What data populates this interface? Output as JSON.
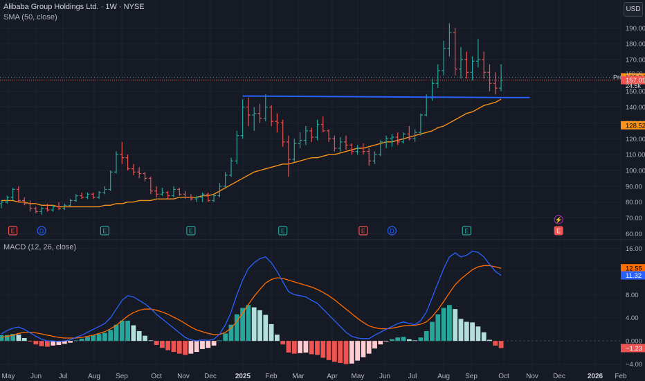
{
  "header": {
    "title": "Alibaba Group Holdings Ltd. · 1W · NYSE",
    "indicator": "SMA (50, close)",
    "currency_button": "USD"
  },
  "macd_panel": {
    "label": "MACD (12, 26, close)"
  },
  "colors": {
    "background": "#161a25",
    "up": "#26a69a",
    "down": "#ef5350",
    "sma": "#f7931a",
    "trendline": "#2962ff",
    "macd_line": "#2962ff",
    "signal_line": "#ff6d00",
    "hist_up_strong": "#26a69a",
    "hist_up_weak": "#b2dfdb",
    "hist_down_strong": "#ef5350",
    "hist_down_weak": "#ffcdd2"
  },
  "chart_data": [
    {
      "type": "candlestick",
      "title": "Alibaba Group Holdings Ltd. · 1W · NYSE",
      "y_ticks": [
        60,
        70,
        80,
        90,
        100,
        110,
        120,
        130,
        140,
        150,
        160,
        170,
        180,
        190
      ],
      "ylim": [
        58,
        198
      ],
      "x_ticks": [
        "May",
        "Jun",
        "Jul",
        "Aug",
        "Sep",
        "Oct",
        "Nov",
        "Dec",
        "2025",
        "Feb",
        "Mar",
        "Apr",
        "May",
        "Jun",
        "Jul",
        "Aug",
        "Sep",
        "Oct",
        "Nov",
        "Dec",
        "2026",
        "Feb"
      ],
      "bars": [
        {
          "o": 79,
          "h": 81,
          "l": 76,
          "c": 80
        },
        {
          "o": 80,
          "h": 84,
          "l": 79,
          "c": 83
        },
        {
          "o": 83,
          "h": 89,
          "l": 81,
          "c": 88
        },
        {
          "o": 88,
          "h": 90,
          "l": 80,
          "c": 81
        },
        {
          "o": 81,
          "h": 83,
          "l": 78,
          "c": 79
        },
        {
          "o": 79,
          "h": 81,
          "l": 74,
          "c": 76
        },
        {
          "o": 76,
          "h": 77,
          "l": 73,
          "c": 74
        },
        {
          "o": 74,
          "h": 77,
          "l": 72,
          "c": 76
        },
        {
          "o": 76,
          "h": 79,
          "l": 74,
          "c": 75
        },
        {
          "o": 75,
          "h": 78,
          "l": 74,
          "c": 77
        },
        {
          "o": 77,
          "h": 80,
          "l": 75,
          "c": 76
        },
        {
          "o": 76,
          "h": 79,
          "l": 75,
          "c": 78
        },
        {
          "o": 78,
          "h": 82,
          "l": 77,
          "c": 81
        },
        {
          "o": 81,
          "h": 85,
          "l": 80,
          "c": 84
        },
        {
          "o": 84,
          "h": 86,
          "l": 82,
          "c": 83
        },
        {
          "o": 83,
          "h": 86,
          "l": 82,
          "c": 85
        },
        {
          "o": 85,
          "h": 86,
          "l": 82,
          "c": 83
        },
        {
          "o": 83,
          "h": 87,
          "l": 82,
          "c": 86
        },
        {
          "o": 86,
          "h": 90,
          "l": 85,
          "c": 88
        },
        {
          "o": 88,
          "h": 100,
          "l": 87,
          "c": 99
        },
        {
          "o": 99,
          "h": 112,
          "l": 98,
          "c": 110
        },
        {
          "o": 110,
          "h": 118,
          "l": 104,
          "c": 108
        },
        {
          "o": 108,
          "h": 110,
          "l": 100,
          "c": 101
        },
        {
          "o": 101,
          "h": 104,
          "l": 97,
          "c": 99
        },
        {
          "o": 99,
          "h": 102,
          "l": 95,
          "c": 98
        },
        {
          "o": 98,
          "h": 99,
          "l": 93,
          "c": 95
        },
        {
          "o": 95,
          "h": 96,
          "l": 85,
          "c": 87
        },
        {
          "o": 87,
          "h": 90,
          "l": 83,
          "c": 85
        },
        {
          "o": 85,
          "h": 89,
          "l": 84,
          "c": 86
        },
        {
          "o": 86,
          "h": 87,
          "l": 82,
          "c": 84
        },
        {
          "o": 84,
          "h": 90,
          "l": 83,
          "c": 88
        },
        {
          "o": 88,
          "h": 89,
          "l": 84,
          "c": 85
        },
        {
          "o": 85,
          "h": 87,
          "l": 82,
          "c": 83
        },
        {
          "o": 83,
          "h": 85,
          "l": 81,
          "c": 82
        },
        {
          "o": 82,
          "h": 84,
          "l": 80,
          "c": 83
        },
        {
          "o": 83,
          "h": 86,
          "l": 80,
          "c": 85
        },
        {
          "o": 85,
          "h": 86,
          "l": 80,
          "c": 81
        },
        {
          "o": 81,
          "h": 85,
          "l": 80,
          "c": 84
        },
        {
          "o": 84,
          "h": 92,
          "l": 83,
          "c": 90
        },
        {
          "o": 90,
          "h": 99,
          "l": 89,
          "c": 97
        },
        {
          "o": 97,
          "h": 108,
          "l": 96,
          "c": 106
        },
        {
          "o": 106,
          "h": 125,
          "l": 104,
          "c": 122
        },
        {
          "o": 122,
          "h": 145,
          "l": 120,
          "c": 140
        },
        {
          "o": 140,
          "h": 146,
          "l": 128,
          "c": 135
        },
        {
          "o": 135,
          "h": 140,
          "l": 125,
          "c": 136
        },
        {
          "o": 136,
          "h": 142,
          "l": 130,
          "c": 133
        },
        {
          "o": 133,
          "h": 148,
          "l": 131,
          "c": 140
        },
        {
          "o": 140,
          "h": 141,
          "l": 128,
          "c": 131
        },
        {
          "o": 131,
          "h": 136,
          "l": 124,
          "c": 130
        },
        {
          "o": 130,
          "h": 132,
          "l": 115,
          "c": 118
        },
        {
          "o": 118,
          "h": 122,
          "l": 96,
          "c": 107
        },
        {
          "o": 107,
          "h": 120,
          "l": 105,
          "c": 117
        },
        {
          "o": 117,
          "h": 124,
          "l": 114,
          "c": 119
        },
        {
          "o": 119,
          "h": 128,
          "l": 116,
          "c": 125
        },
        {
          "o": 125,
          "h": 127,
          "l": 118,
          "c": 121
        },
        {
          "o": 121,
          "h": 132,
          "l": 119,
          "c": 129
        },
        {
          "o": 129,
          "h": 134,
          "l": 124,
          "c": 125
        },
        {
          "o": 125,
          "h": 126,
          "l": 118,
          "c": 120
        },
        {
          "o": 120,
          "h": 122,
          "l": 112,
          "c": 114
        },
        {
          "o": 114,
          "h": 121,
          "l": 112,
          "c": 118
        },
        {
          "o": 118,
          "h": 122,
          "l": 113,
          "c": 116
        },
        {
          "o": 116,
          "h": 117,
          "l": 110,
          "c": 112
        },
        {
          "o": 112,
          "h": 116,
          "l": 110,
          "c": 114
        },
        {
          "o": 114,
          "h": 117,
          "l": 110,
          "c": 112
        },
        {
          "o": 112,
          "h": 114,
          "l": 103,
          "c": 106
        },
        {
          "o": 106,
          "h": 112,
          "l": 104,
          "c": 110
        },
        {
          "o": 110,
          "h": 119,
          "l": 109,
          "c": 118
        },
        {
          "o": 118,
          "h": 122,
          "l": 114,
          "c": 120
        },
        {
          "o": 120,
          "h": 123,
          "l": 115,
          "c": 121
        },
        {
          "o": 121,
          "h": 124,
          "l": 116,
          "c": 118
        },
        {
          "o": 118,
          "h": 124,
          "l": 117,
          "c": 123
        },
        {
          "o": 123,
          "h": 128,
          "l": 119,
          "c": 120
        },
        {
          "o": 120,
          "h": 126,
          "l": 118,
          "c": 124
        },
        {
          "o": 124,
          "h": 136,
          "l": 122,
          "c": 135
        },
        {
          "o": 135,
          "h": 148,
          "l": 134,
          "c": 146
        },
        {
          "o": 146,
          "h": 158,
          "l": 144,
          "c": 155
        },
        {
          "o": 155,
          "h": 167,
          "l": 152,
          "c": 163
        },
        {
          "o": 163,
          "h": 182,
          "l": 160,
          "c": 177
        },
        {
          "o": 177,
          "h": 193,
          "l": 172,
          "c": 187
        },
        {
          "o": 187,
          "h": 190,
          "l": 160,
          "c": 164
        },
        {
          "o": 164,
          "h": 178,
          "l": 158,
          "c": 170
        },
        {
          "o": 170,
          "h": 175,
          "l": 158,
          "c": 162
        },
        {
          "o": 162,
          "h": 172,
          "l": 157,
          "c": 169
        },
        {
          "o": 169,
          "h": 183,
          "l": 165,
          "c": 170
        },
        {
          "o": 170,
          "h": 175,
          "l": 158,
          "c": 162
        },
        {
          "o": 162,
          "h": 167,
          "l": 150,
          "c": 155
        },
        {
          "o": 155,
          "h": 162,
          "l": 148,
          "c": 152
        },
        {
          "o": 152,
          "h": 167,
          "l": 150,
          "c": 157
        }
      ],
      "sma50": [
        81,
        81,
        81,
        80,
        80,
        79,
        79,
        78,
        78,
        78,
        77,
        77,
        77,
        77,
        77,
        77,
        77,
        77,
        78,
        78,
        79,
        79,
        80,
        80,
        81,
        81,
        81,
        82,
        82,
        82,
        82,
        83,
        83,
        83,
        83,
        84,
        84,
        85,
        87,
        89,
        91,
        93,
        95,
        97,
        99,
        100,
        101,
        102,
        103,
        104,
        104,
        105,
        106,
        107,
        108,
        108,
        109,
        110,
        110,
        111,
        112,
        113,
        114,
        114,
        115,
        116,
        117,
        118,
        118,
        119,
        120,
        121,
        122,
        123,
        124,
        125,
        127,
        128,
        130,
        132,
        134,
        136,
        137,
        139,
        141,
        142,
        143,
        145
      ],
      "trendline": [
        {
          "bar": 42,
          "price": 147
        },
        {
          "bar": 87,
          "price": 146
        },
        {
          "bar": 92,
          "price": 146
        }
      ],
      "earnings_markers": [
        {
          "bar": 2,
          "label": "E",
          "kind": "earnings-miss"
        },
        {
          "bar": 7,
          "label": "D",
          "kind": "dividend"
        },
        {
          "bar": 18,
          "label": "E",
          "kind": "earnings-beat"
        },
        {
          "bar": 33,
          "label": "E",
          "kind": "earnings-beat"
        },
        {
          "bar": 49,
          "label": "E",
          "kind": "earnings-beat"
        },
        {
          "bar": 63,
          "label": "E",
          "kind": "earnings-miss"
        },
        {
          "bar": 68,
          "label": "D",
          "kind": "dividend"
        },
        {
          "bar": 81,
          "label": "E",
          "kind": "earnings-beat"
        },
        {
          "bar": 97,
          "label": "E",
          "kind": "earnings-upcoming"
        }
      ],
      "price_labels": [
        {
          "text": "158.74",
          "bg": "#f7931a",
          "fg": "#000000",
          "value": 158.74
        },
        {
          "text": "157.01",
          "bg": "#ef5350",
          "fg": "#ffffff",
          "value": 157.01
        },
        {
          "text": "128.52",
          "bg": "#f7931a",
          "fg": "#000000",
          "value": 128.52
        }
      ],
      "partial_labels": [
        "Pre",
        "160.00",
        "24.5k"
      ]
    },
    {
      "type": "macd",
      "title": "MACD (12, 26, close)",
      "y_ticks": [
        -4,
        0,
        4,
        8,
        12,
        16
      ],
      "y_tick_labels": [
        "−4.00",
        "0.000",
        "4.00",
        "8.00",
        "12.00",
        "16.00"
      ],
      "ylim": [
        -5,
        17
      ],
      "macd": [
        1.2,
        1.8,
        2.2,
        2.4,
        2.0,
        1.4,
        0.8,
        0.3,
        0.0,
        0.0,
        -0.1,
        0.0,
        0.2,
        0.6,
        1.0,
        1.5,
        2.0,
        2.5,
        3.0,
        4.0,
        5.5,
        7.0,
        7.8,
        7.6,
        7.0,
        6.4,
        5.6,
        4.6,
        3.8,
        3.0,
        2.2,
        1.4,
        0.6,
        0.2,
        0.0,
        0.2,
        0.1,
        0.3,
        1.2,
        2.8,
        5.0,
        8.0,
        10.5,
        12.5,
        13.5,
        14.2,
        14.5,
        13.5,
        12.0,
        10.2,
        8.5,
        8.0,
        7.8,
        7.6,
        7.0,
        6.5,
        5.5,
        4.5,
        3.5,
        2.5,
        1.5,
        0.8,
        0.5,
        0.4,
        0.4,
        1.0,
        1.5,
        2.0,
        2.5,
        3.0,
        3.3,
        3.0,
        2.8,
        3.5,
        5.0,
        7.5,
        10.0,
        12.5,
        14.5,
        15.2,
        14.5,
        14.8,
        15.5,
        15.3,
        14.5,
        13.2,
        12.0,
        11.3
      ],
      "signal": [
        0.6,
        0.8,
        1.0,
        1.3,
        1.5,
        1.5,
        1.4,
        1.2,
        1.0,
        0.8,
        0.6,
        0.5,
        0.5,
        0.5,
        0.6,
        0.8,
        1.0,
        1.3,
        1.6,
        2.1,
        2.7,
        3.5,
        4.3,
        4.9,
        5.3,
        5.5,
        5.5,
        5.3,
        5.0,
        4.6,
        4.1,
        3.6,
        3.0,
        2.4,
        1.9,
        1.6,
        1.3,
        1.1,
        1.1,
        1.5,
        2.2,
        3.4,
        4.8,
        6.3,
        7.7,
        8.9,
        10.0,
        10.6,
        10.9,
        10.8,
        10.5,
        10.2,
        9.9,
        9.6,
        9.3,
        8.9,
        8.4,
        7.8,
        7.1,
        6.3,
        5.5,
        4.7,
        3.9,
        3.2,
        2.6,
        2.3,
        2.1,
        2.1,
        2.2,
        2.4,
        2.6,
        2.7,
        2.7,
        2.9,
        3.3,
        4.2,
        5.4,
        6.8,
        8.3,
        9.7,
        10.7,
        11.5,
        12.3,
        12.8,
        13.0,
        13.0,
        12.8,
        12.55
      ],
      "histogram": [
        1.0,
        1.0,
        1.2,
        1.1,
        0.5,
        -0.1,
        -0.6,
        -0.9,
        -1.0,
        -0.8,
        -0.7,
        -0.5,
        -0.3,
        0.1,
        0.4,
        0.7,
        1.0,
        1.2,
        1.4,
        1.9,
        2.8,
        3.5,
        3.5,
        2.7,
        1.7,
        0.9,
        0.1,
        -0.7,
        -1.2,
        -1.6,
        -1.9,
        -2.2,
        -2.4,
        -2.2,
        -1.9,
        -1.4,
        -1.2,
        -0.8,
        0.1,
        1.3,
        2.8,
        4.6,
        5.7,
        6.2,
        5.8,
        5.3,
        4.5,
        2.9,
        1.1,
        -0.6,
        -2.0,
        -2.2,
        -2.1,
        -2.0,
        -2.3,
        -2.4,
        -2.9,
        -3.3,
        -3.6,
        -3.8,
        -4.0,
        -3.9,
        -3.4,
        -2.8,
        -2.2,
        -1.3,
        -0.6,
        -0.1,
        0.3,
        0.6,
        0.7,
        0.3,
        0.1,
        0.6,
        1.7,
        3.3,
        4.6,
        5.7,
        6.2,
        5.5,
        3.8,
        3.3,
        3.2,
        2.5,
        1.5,
        0.2,
        -0.8,
        -1.23
      ],
      "value_labels": [
        {
          "text": "12.55",
          "bg": "#ff6d00",
          "fg": "#000000",
          "value": 12.55
        },
        {
          "text": "11.32",
          "bg": "#2962ff",
          "fg": "#ffffff",
          "value": 11.32
        },
        {
          "text": "−1.23",
          "bg": "#ef5350",
          "fg": "#ffffff",
          "value": -1.23
        }
      ]
    }
  ]
}
